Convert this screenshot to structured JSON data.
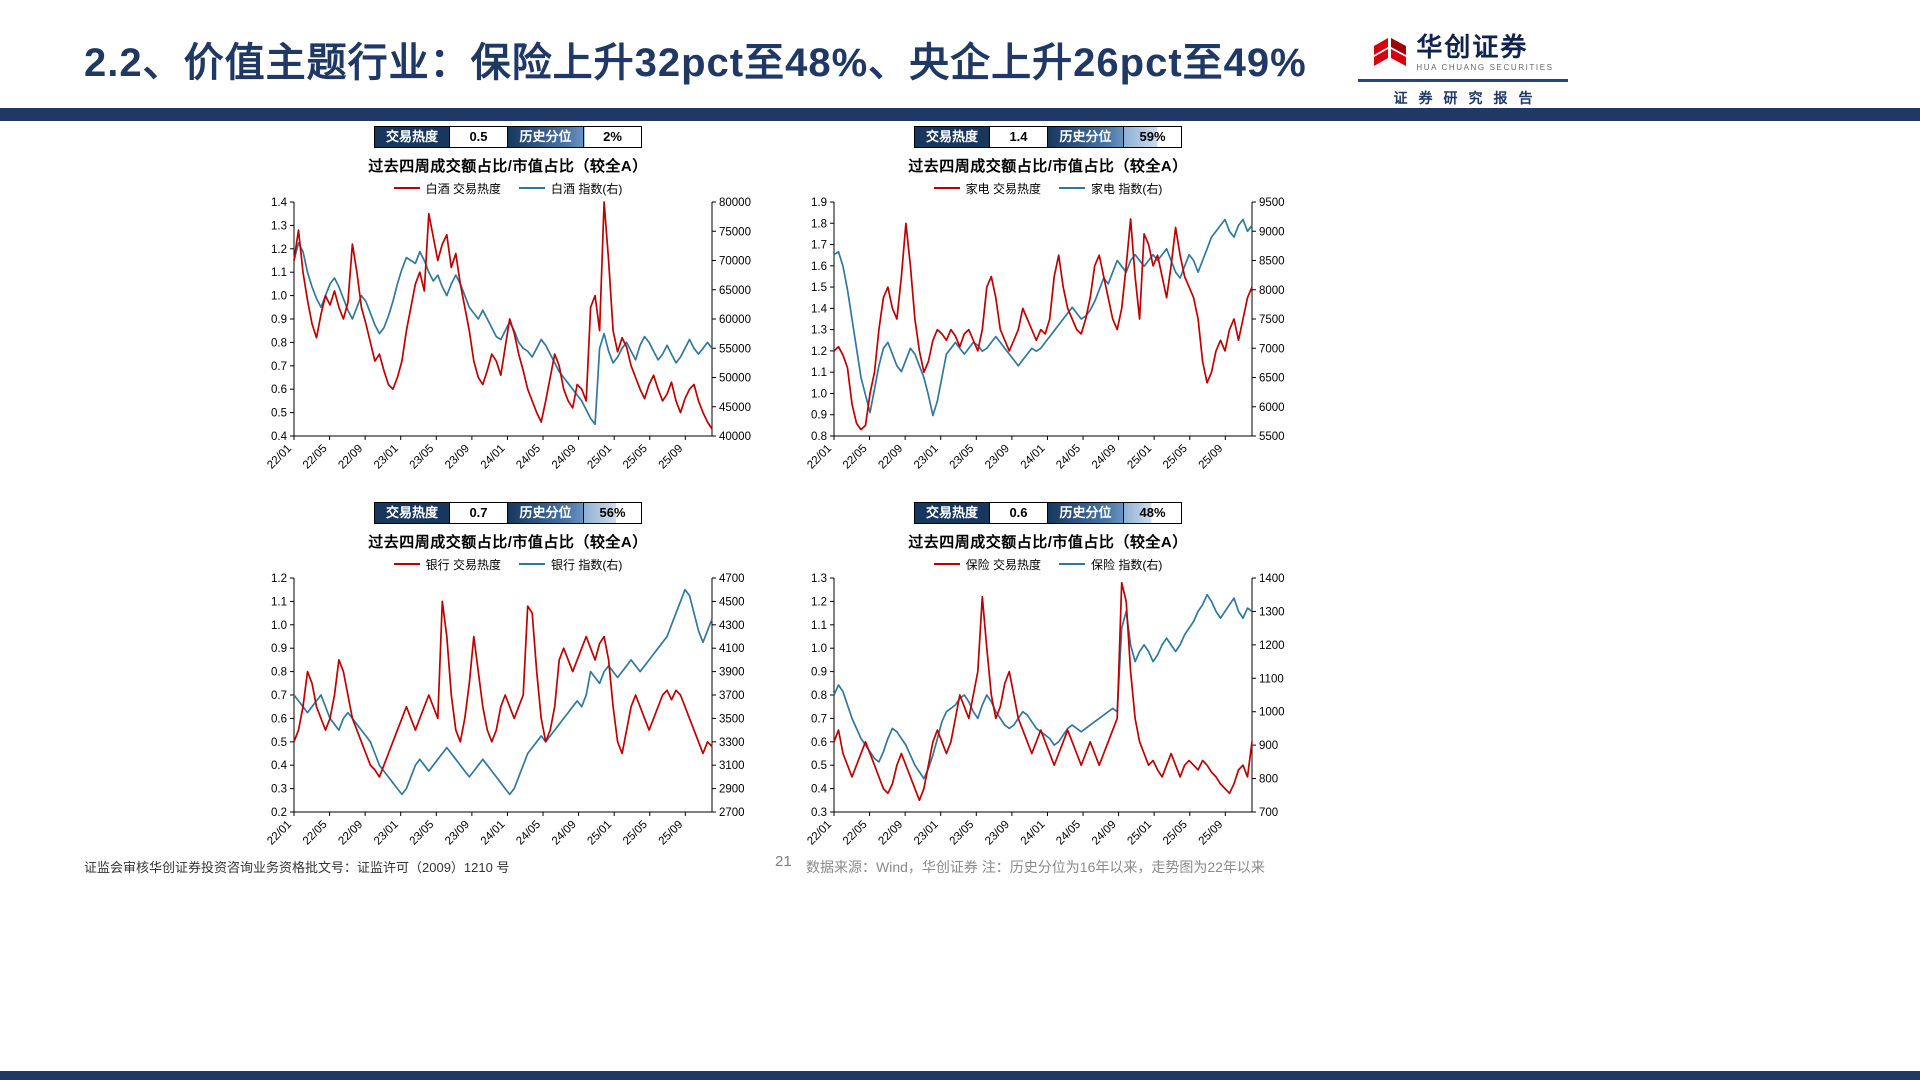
{
  "header": {
    "title": "2.2、价值主题行业：保险上升32pct至48%、央企上升26pct至49%",
    "logo": {
      "cn": "华创证券",
      "en": "HUA CHUANG SECURITIES",
      "sub": "证券研究报告"
    }
  },
  "shared": {
    "subtitle": "过去四周成交额占比/市值占比（较全A）",
    "heat_label": "交易热度",
    "pct_label": "历史分位",
    "x_labels": [
      "22/01",
      "22/05",
      "22/09",
      "23/01",
      "23/05",
      "23/09",
      "24/01",
      "24/05",
      "24/09",
      "25/01",
      "25/05",
      "25/09"
    ]
  },
  "colors": {
    "red": "#C00000",
    "blue": "#30789E",
    "navy": "#1F3864"
  },
  "chart_data": [
    {
      "type": "line",
      "name": "白酒",
      "heat_value": "0.5",
      "pct_value": "2%",
      "pct_num": 2,
      "legend_hot": "白酒 交易热度",
      "legend_idx": "白酒 指数(右)",
      "left_range": [
        0.4,
        1.4
      ],
      "left_step": 0.1,
      "right_range": [
        40000,
        80000
      ],
      "right_step": 5000,
      "hot": [
        1.15,
        1.28,
        1.1,
        0.98,
        0.88,
        0.82,
        0.92,
        1.0,
        0.96,
        1.02,
        0.95,
        0.9,
        0.97,
        1.22,
        1.1,
        0.95,
        0.88,
        0.8,
        0.72,
        0.75,
        0.68,
        0.62,
        0.6,
        0.65,
        0.72,
        0.85,
        0.95,
        1.05,
        1.1,
        1.02,
        1.35,
        1.25,
        1.15,
        1.22,
        1.26,
        1.12,
        1.18,
        1.05,
        0.95,
        0.85,
        0.72,
        0.65,
        0.62,
        0.68,
        0.75,
        0.72,
        0.66,
        0.78,
        0.9,
        0.84,
        0.75,
        0.68,
        0.6,
        0.55,
        0.5,
        0.46,
        0.55,
        0.65,
        0.75,
        0.7,
        0.6,
        0.55,
        0.52,
        0.62,
        0.6,
        0.55,
        0.95,
        1.0,
        0.85,
        1.4,
        1.15,
        0.85,
        0.76,
        0.82,
        0.78,
        0.7,
        0.65,
        0.6,
        0.56,
        0.62,
        0.66,
        0.6,
        0.55,
        0.58,
        0.63,
        0.55,
        0.5,
        0.56,
        0.6,
        0.62,
        0.55,
        0.5,
        0.46,
        0.43
      ],
      "idx": [
        70000,
        73000,
        71500,
        68000,
        65500,
        63500,
        62000,
        64000,
        66000,
        67000,
        65500,
        63500,
        61500,
        60000,
        62000,
        64000,
        63000,
        61000,
        59000,
        57500,
        58500,
        60500,
        63000,
        66000,
        68500,
        70500,
        70000,
        69500,
        71500,
        70000,
        68000,
        66500,
        67500,
        65500,
        64000,
        66000,
        67500,
        66000,
        64000,
        62000,
        61000,
        60000,
        61500,
        60000,
        58500,
        57000,
        56500,
        58000,
        59500,
        58000,
        56000,
        55000,
        54500,
        53500,
        55000,
        56500,
        55500,
        54000,
        52500,
        51000,
        50000,
        49000,
        48000,
        47000,
        46000,
        44500,
        43000,
        42000,
        55000,
        57500,
        54500,
        52500,
        53500,
        55000,
        56000,
        54500,
        53000,
        55500,
        57000,
        56000,
        54500,
        53000,
        54000,
        55500,
        54000,
        52500,
        53500,
        55000,
        56500,
        55000,
        54000,
        55000,
        56000,
        55000
      ]
    },
    {
      "type": "line",
      "name": "家电",
      "heat_value": "1.4",
      "pct_value": "59%",
      "pct_num": 59,
      "legend_hot": "家电 交易热度",
      "legend_idx": "家电 指数(右)",
      "left_range": [
        0.8,
        1.9
      ],
      "left_step": 0.1,
      "right_range": [
        5500,
        9500
      ],
      "right_step": 500,
      "hot": [
        1.2,
        1.22,
        1.18,
        1.12,
        0.95,
        0.86,
        0.83,
        0.85,
        1.0,
        1.1,
        1.3,
        1.45,
        1.5,
        1.4,
        1.35,
        1.55,
        1.8,
        1.6,
        1.35,
        1.2,
        1.1,
        1.15,
        1.25,
        1.3,
        1.28,
        1.25,
        1.3,
        1.27,
        1.22,
        1.28,
        1.3,
        1.25,
        1.2,
        1.3,
        1.5,
        1.55,
        1.45,
        1.3,
        1.25,
        1.2,
        1.25,
        1.3,
        1.4,
        1.35,
        1.3,
        1.25,
        1.3,
        1.28,
        1.35,
        1.55,
        1.65,
        1.5,
        1.4,
        1.35,
        1.3,
        1.28,
        1.35,
        1.45,
        1.6,
        1.65,
        1.55,
        1.45,
        1.35,
        1.3,
        1.4,
        1.6,
        1.82,
        1.55,
        1.35,
        1.75,
        1.7,
        1.6,
        1.65,
        1.55,
        1.45,
        1.6,
        1.78,
        1.65,
        1.55,
        1.5,
        1.45,
        1.35,
        1.15,
        1.05,
        1.1,
        1.2,
        1.25,
        1.2,
        1.3,
        1.35,
        1.25,
        1.35,
        1.45,
        1.5
      ],
      "idx": [
        8600,
        8650,
        8400,
        8000,
        7500,
        7000,
        6500,
        6200,
        5900,
        6300,
        6700,
        7000,
        7100,
        6900,
        6700,
        6600,
        6800,
        7000,
        6900,
        6700,
        6500,
        6200,
        5850,
        6100,
        6500,
        6900,
        7000,
        7100,
        7000,
        6900,
        7000,
        7100,
        7050,
        6950,
        7000,
        7100,
        7200,
        7100,
        7000,
        6900,
        6800,
        6700,
        6800,
        6900,
        7000,
        6950,
        7000,
        7100,
        7200,
        7300,
        7400,
        7500,
        7600,
        7700,
        7600,
        7500,
        7550,
        7650,
        7800,
        8000,
        8200,
        8100,
        8300,
        8500,
        8400,
        8300,
        8500,
        8600,
        8500,
        8400,
        8500,
        8600,
        8500,
        8600,
        8700,
        8500,
        8300,
        8200,
        8400,
        8600,
        8500,
        8300,
        8500,
        8700,
        8900,
        9000,
        9100,
        9200,
        9000,
        8900,
        9100,
        9200,
        9000,
        9100
      ]
    },
    {
      "type": "line",
      "name": "银行",
      "heat_value": "0.7",
      "pct_value": "56%",
      "pct_num": 56,
      "legend_hot": "银行 交易热度",
      "legend_idx": "银行 指数(右)",
      "left_range": [
        0.2,
        1.2
      ],
      "left_step": 0.1,
      "right_range": [
        2700,
        4700
      ],
      "right_step": 200,
      "hot": [
        0.5,
        0.55,
        0.65,
        0.8,
        0.75,
        0.65,
        0.6,
        0.55,
        0.6,
        0.7,
        0.85,
        0.8,
        0.7,
        0.6,
        0.55,
        0.5,
        0.45,
        0.4,
        0.38,
        0.35,
        0.4,
        0.45,
        0.5,
        0.55,
        0.6,
        0.65,
        0.6,
        0.55,
        0.6,
        0.65,
        0.7,
        0.65,
        0.6,
        1.1,
        0.95,
        0.7,
        0.55,
        0.5,
        0.6,
        0.75,
        0.95,
        0.8,
        0.65,
        0.55,
        0.5,
        0.55,
        0.65,
        0.7,
        0.65,
        0.6,
        0.65,
        0.7,
        1.08,
        1.05,
        0.8,
        0.6,
        0.5,
        0.55,
        0.65,
        0.85,
        0.9,
        0.85,
        0.8,
        0.85,
        0.9,
        0.95,
        0.9,
        0.85,
        0.92,
        0.95,
        0.85,
        0.65,
        0.5,
        0.45,
        0.55,
        0.65,
        0.7,
        0.65,
        0.6,
        0.55,
        0.6,
        0.65,
        0.7,
        0.72,
        0.68,
        0.72,
        0.7,
        0.65,
        0.6,
        0.55,
        0.5,
        0.45,
        0.5,
        0.48
      ],
      "idx": [
        3700,
        3650,
        3600,
        3550,
        3600,
        3650,
        3700,
        3600,
        3500,
        3450,
        3400,
        3500,
        3550,
        3500,
        3450,
        3400,
        3350,
        3300,
        3200,
        3100,
        3050,
        3000,
        2950,
        2900,
        2850,
        2900,
        3000,
        3100,
        3150,
        3100,
        3050,
        3100,
        3150,
        3200,
        3250,
        3200,
        3150,
        3100,
        3050,
        3000,
        3050,
        3100,
        3150,
        3100,
        3050,
        3000,
        2950,
        2900,
        2850,
        2900,
        3000,
        3100,
        3200,
        3250,
        3300,
        3350,
        3300,
        3350,
        3400,
        3450,
        3500,
        3550,
        3600,
        3650,
        3600,
        3700,
        3900,
        3850,
        3800,
        3900,
        3950,
        3900,
        3850,
        3900,
        3950,
        4000,
        3950,
        3900,
        3950,
        4000,
        4050,
        4100,
        4150,
        4200,
        4300,
        4400,
        4500,
        4600,
        4550,
        4400,
        4250,
        4150,
        4250,
        4350
      ]
    },
    {
      "type": "line",
      "name": "保险",
      "heat_value": "0.6",
      "pct_value": "48%",
      "pct_num": 48,
      "legend_hot": "保险 交易热度",
      "legend_idx": "保险 指数(右)",
      "left_range": [
        0.3,
        1.3
      ],
      "left_step": 0.1,
      "right_range": [
        700,
        1400
      ],
      "right_step": 100,
      "hot": [
        0.6,
        0.65,
        0.55,
        0.5,
        0.45,
        0.5,
        0.55,
        0.6,
        0.55,
        0.5,
        0.45,
        0.4,
        0.38,
        0.42,
        0.5,
        0.55,
        0.5,
        0.45,
        0.4,
        0.35,
        0.4,
        0.5,
        0.6,
        0.65,
        0.6,
        0.55,
        0.6,
        0.7,
        0.8,
        0.75,
        0.7,
        0.8,
        0.9,
        1.22,
        1.0,
        0.8,
        0.7,
        0.75,
        0.85,
        0.9,
        0.8,
        0.7,
        0.65,
        0.6,
        0.55,
        0.6,
        0.65,
        0.6,
        0.55,
        0.5,
        0.55,
        0.6,
        0.65,
        0.6,
        0.55,
        0.5,
        0.55,
        0.6,
        0.55,
        0.5,
        0.55,
        0.6,
        0.65,
        0.7,
        1.28,
        1.2,
        0.9,
        0.7,
        0.6,
        0.55,
        0.5,
        0.52,
        0.48,
        0.45,
        0.5,
        0.55,
        0.5,
        0.45,
        0.5,
        0.52,
        0.5,
        0.48,
        0.52,
        0.5,
        0.47,
        0.45,
        0.42,
        0.4,
        0.38,
        0.42,
        0.48,
        0.5,
        0.45,
        0.6
      ],
      "idx": [
        1050,
        1080,
        1060,
        1020,
        980,
        950,
        920,
        900,
        880,
        860,
        850,
        880,
        920,
        950,
        940,
        920,
        900,
        870,
        840,
        820,
        800,
        830,
        870,
        920,
        970,
        1000,
        1010,
        1020,
        1040,
        1050,
        1030,
        1000,
        980,
        1020,
        1050,
        1030,
        1000,
        980,
        960,
        950,
        960,
        980,
        1000,
        990,
        970,
        950,
        940,
        930,
        920,
        900,
        910,
        930,
        950,
        960,
        950,
        940,
        950,
        960,
        970,
        980,
        990,
        1000,
        1010,
        1000,
        1250,
        1300,
        1200,
        1150,
        1180,
        1200,
        1180,
        1150,
        1170,
        1200,
        1220,
        1200,
        1180,
        1200,
        1230,
        1250,
        1270,
        1300,
        1320,
        1350,
        1330,
        1300,
        1280,
        1300,
        1320,
        1340,
        1300,
        1280,
        1310,
        1300
      ]
    }
  ],
  "footer": {
    "left": "证监会审核华创证券投资咨询业务资格批文号：证监许可（2009）1210 号",
    "page": "21",
    "right": "数据来源：Wind，华创证券 注：历史分位为16年以来，走势图为22年以来"
  }
}
